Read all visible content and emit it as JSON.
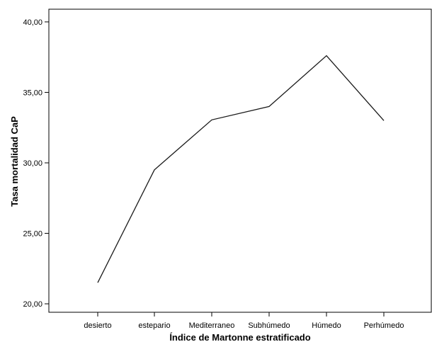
{
  "chart_data": {
    "type": "line",
    "title": "",
    "xlabel": "Índice de Martonne estratificado",
    "ylabel": "Tasa mortalidad CaP",
    "categories": [
      "desierto",
      "estepario",
      "Mediterraneo",
      "Subhúmedo",
      "Húmedo",
      "Perhúmedo"
    ],
    "values": [
      21.5,
      29.5,
      33.05,
      34.0,
      37.6,
      33.0
    ],
    "ylim": [
      19.4,
      40.9
    ],
    "yticks": [
      20,
      25,
      30,
      35,
      40
    ],
    "ytick_labels": [
      "20,00",
      "25,00",
      "30,00",
      "35,00",
      "40,00"
    ],
    "grid": false,
    "line_color": "#1a1a1a",
    "axis_color": "#000000"
  }
}
